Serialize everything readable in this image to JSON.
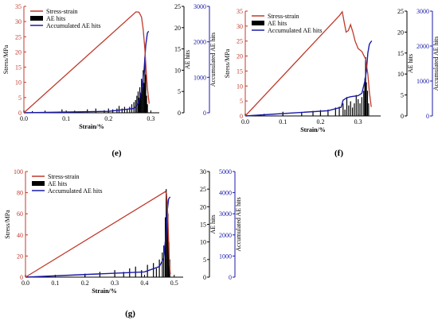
{
  "colors": {
    "stress": "#c0392b",
    "ae": "#000000",
    "accum": "#1a1aa8",
    "stress_axis": "#c0392b",
    "accum_axis": "#1a1aa8",
    "axis": "#000000"
  },
  "chart_data": [
    {
      "panel_label": "(e)",
      "type": "line",
      "xlabel": "Strain/%",
      "y1label": "Stress/MPa",
      "y2label": "AE hits",
      "y3label": "Accumulated  AE hits",
      "xlim": [
        0,
        0.32
      ],
      "xticks": [
        0.0,
        0.1,
        0.2,
        0.3
      ],
      "xtick_labels": [
        "0.0",
        "0.1",
        "0.2",
        "0.3"
      ],
      "y1lim": [
        0,
        35
      ],
      "y1ticks": [
        0,
        5,
        10,
        15,
        20,
        25,
        30,
        35
      ],
      "y2lim": [
        0,
        25
      ],
      "y2ticks": [
        0,
        5,
        10,
        15,
        20,
        25
      ],
      "y3lim": [
        0,
        3000
      ],
      "y3ticks": [
        0,
        1000,
        2000,
        3000
      ],
      "legend": [
        "Stress-strain",
        "AE hits",
        "Accumulated  AE hits"
      ],
      "legend_position": "top-left",
      "stress_strain": [
        [
          0,
          0
        ],
        [
          0.265,
          33.2
        ],
        [
          0.272,
          33.1
        ],
        [
          0.278,
          31.5
        ],
        [
          0.282,
          27.5
        ],
        [
          0.286,
          21
        ],
        [
          0.289,
          14
        ],
        [
          0.292,
          8
        ],
        [
          0.296,
          3
        ]
      ],
      "ae_hits": [
        [
          0.02,
          0.4
        ],
        [
          0.05,
          0.5
        ],
        [
          0.09,
          0.8
        ],
        [
          0.12,
          0.5
        ],
        [
          0.15,
          0.8
        ],
        [
          0.17,
          1
        ],
        [
          0.19,
          0.6
        ],
        [
          0.2,
          1
        ],
        [
          0.21,
          0.8
        ],
        [
          0.22,
          1
        ],
        [
          0.225,
          1.6
        ],
        [
          0.232,
          1
        ],
        [
          0.238,
          1.4
        ],
        [
          0.244,
          0.9
        ],
        [
          0.25,
          1.4
        ],
        [
          0.255,
          2
        ],
        [
          0.26,
          2.5
        ],
        [
          0.264,
          3
        ],
        [
          0.267,
          4
        ],
        [
          0.27,
          5
        ],
        [
          0.272,
          3.5
        ],
        [
          0.274,
          6
        ],
        [
          0.276,
          4.5
        ],
        [
          0.278,
          8
        ],
        [
          0.28,
          6
        ],
        [
          0.282,
          10
        ],
        [
          0.284,
          7
        ],
        [
          0.286,
          13
        ],
        [
          0.288,
          9
        ],
        [
          0.29,
          4
        ],
        [
          0.292,
          2
        ]
      ],
      "accumulated_ae_hits": [
        [
          0,
          0
        ],
        [
          0.2,
          40
        ],
        [
          0.26,
          120
        ],
        [
          0.27,
          260
        ],
        [
          0.278,
          600
        ],
        [
          0.284,
          1200
        ],
        [
          0.288,
          1900
        ],
        [
          0.292,
          2250
        ],
        [
          0.295,
          2300
        ]
      ]
    },
    {
      "panel_label": "(f)",
      "type": "line",
      "xlabel": "Strain/%",
      "y1label": "Stress/MPa",
      "y2label": "AE hits",
      "y3label": "Accumulated  AE hits",
      "xlim": [
        0,
        0.36
      ],
      "xticks": [
        0.0,
        0.1,
        0.2,
        0.3
      ],
      "xtick_labels": [
        "0.0",
        "0.1",
        "0.2",
        "0.3"
      ],
      "y1lim": [
        0,
        35
      ],
      "y1ticks": [
        0,
        5,
        10,
        15,
        20,
        25,
        30,
        35
      ],
      "y2lim": [
        0,
        25
      ],
      "y2ticks": [
        0,
        5,
        10,
        15,
        20,
        25
      ],
      "y3lim": [
        0,
        3000
      ],
      "y3ticks": [
        0,
        1000,
        2000,
        3000
      ],
      "legend": [
        "Stress-strain",
        "AE hits",
        "Accumulated  AE hits"
      ],
      "legend_position": "top-left",
      "stress_strain": [
        [
          0,
          0
        ],
        [
          0.25,
          33.5
        ],
        [
          0.258,
          34.8
        ],
        [
          0.262,
          32
        ],
        [
          0.268,
          28
        ],
        [
          0.274,
          28.5
        ],
        [
          0.28,
          30.5
        ],
        [
          0.286,
          28
        ],
        [
          0.292,
          25
        ],
        [
          0.3,
          22.5
        ],
        [
          0.31,
          21.5
        ],
        [
          0.32,
          19
        ],
        [
          0.326,
          14
        ],
        [
          0.33,
          8
        ],
        [
          0.335,
          3
        ]
      ],
      "ae_hits": [
        [
          0.05,
          0.5
        ],
        [
          0.1,
          1
        ],
        [
          0.15,
          0.8
        ],
        [
          0.18,
          1.2
        ],
        [
          0.2,
          1.4
        ],
        [
          0.22,
          1.5
        ],
        [
          0.24,
          2
        ],
        [
          0.25,
          2.2
        ],
        [
          0.26,
          3
        ],
        [
          0.265,
          1.5
        ],
        [
          0.27,
          4.5
        ],
        [
          0.275,
          2.5
        ],
        [
          0.28,
          3.5
        ],
        [
          0.285,
          2
        ],
        [
          0.29,
          3
        ],
        [
          0.295,
          5
        ],
        [
          0.3,
          4
        ],
        [
          0.305,
          3
        ],
        [
          0.31,
          4.5
        ],
        [
          0.315,
          6
        ],
        [
          0.318,
          9
        ],
        [
          0.32,
          14
        ],
        [
          0.322,
          8
        ],
        [
          0.325,
          6
        ],
        [
          0.328,
          3
        ]
      ],
      "accumulated_ae_hits": [
        [
          0,
          0
        ],
        [
          0.22,
          150
        ],
        [
          0.255,
          250
        ],
        [
          0.26,
          450
        ],
        [
          0.27,
          520
        ],
        [
          0.28,
          550
        ],
        [
          0.3,
          580
        ],
        [
          0.31,
          650
        ],
        [
          0.318,
          1000
        ],
        [
          0.322,
          1300
        ],
        [
          0.326,
          1800
        ],
        [
          0.33,
          2050
        ],
        [
          0.336,
          2150
        ]
      ]
    },
    {
      "panel_label": "(g)",
      "type": "line",
      "xlabel": "Strain/%",
      "y1label": "Stress/MPa",
      "y2label": "AE hits",
      "y3label": "Accumulated  AE hits",
      "xlim": [
        0,
        0.53
      ],
      "xticks": [
        0.0,
        0.1,
        0.2,
        0.3,
        0.4,
        0.5
      ],
      "xtick_labels": [
        "0.0",
        "0.1",
        "0.2",
        "0.3",
        "0.4",
        "0.5"
      ],
      "y1lim": [
        0,
        100
      ],
      "y1ticks": [
        0,
        20,
        40,
        60,
        80,
        100
      ],
      "y2lim": [
        0,
        30
      ],
      "y2ticks": [
        0,
        5,
        10,
        15,
        20,
        25,
        30
      ],
      "y3lim": [
        0,
        5000
      ],
      "y3ticks": [
        0,
        1000,
        2000,
        3000,
        4000,
        5000
      ],
      "legend": [
        "Stress-strain",
        "AE hits",
        "Accumulated  AE hits"
      ],
      "legend_position": "top-left",
      "stress_strain": [
        [
          0,
          0
        ],
        [
          0.47,
          81
        ],
        [
          0.474,
          79
        ],
        [
          0.478,
          60
        ],
        [
          0.481,
          35
        ],
        [
          0.484,
          12
        ],
        [
          0.487,
          3
        ]
      ],
      "ae_hits": [
        [
          0.1,
          0.5
        ],
        [
          0.2,
          1
        ],
        [
          0.25,
          1.5
        ],
        [
          0.3,
          2
        ],
        [
          0.33,
          1.5
        ],
        [
          0.35,
          2.5
        ],
        [
          0.37,
          3
        ],
        [
          0.39,
          2
        ],
        [
          0.41,
          3.5
        ],
        [
          0.43,
          4
        ],
        [
          0.44,
          2.5
        ],
        [
          0.45,
          5
        ],
        [
          0.46,
          7
        ],
        [
          0.465,
          9
        ],
        [
          0.47,
          17
        ],
        [
          0.473,
          25
        ],
        [
          0.476,
          22
        ],
        [
          0.479,
          18
        ],
        [
          0.482,
          10
        ],
        [
          0.485,
          5
        ]
      ],
      "accumulated_ae_hits": [
        [
          0,
          0
        ],
        [
          0.4,
          250
        ],
        [
          0.45,
          500
        ],
        [
          0.465,
          900
        ],
        [
          0.472,
          2000
        ],
        [
          0.477,
          3200
        ],
        [
          0.481,
          3700
        ],
        [
          0.486,
          3800
        ]
      ]
    }
  ]
}
